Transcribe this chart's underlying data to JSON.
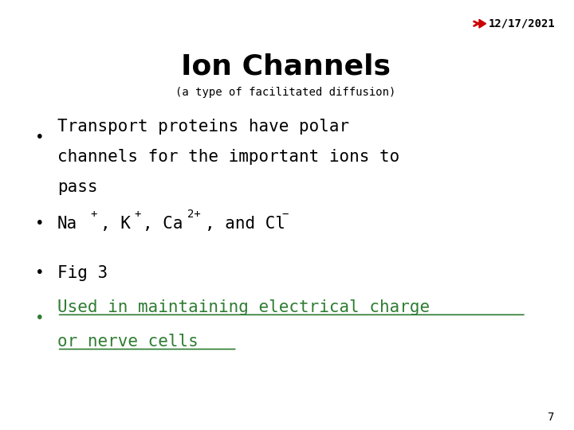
{
  "background_color": "#ffffff",
  "date_text": "12/17/2021",
  "date_color": "#000000",
  "arrow_color": "#cc0000",
  "title": "Ion Channels",
  "subtitle": "(a type of facilitated diffusion)",
  "title_color": "#000000",
  "subtitle_color": "#000000",
  "bullet_color": "#000000",
  "link_color": "#2e7d32",
  "page_number": "7",
  "bullets": [
    {
      "text": "Transport proteins have polar channels for the important ions to pass",
      "color": "#000000",
      "underline": false,
      "has_superscript": false
    },
    {
      "text": "Na⁺, K⁺, Ca²⁺, and Cl⁻",
      "color": "#000000",
      "underline": false,
      "has_superscript": true
    },
    {
      "text": "Fig 3",
      "color": "#000000",
      "underline": false,
      "has_superscript": false
    },
    {
      "text": "Used in maintaining electrical charge or nerve cells",
      "color": "#2e7d32",
      "underline": true,
      "has_superscript": false
    }
  ]
}
